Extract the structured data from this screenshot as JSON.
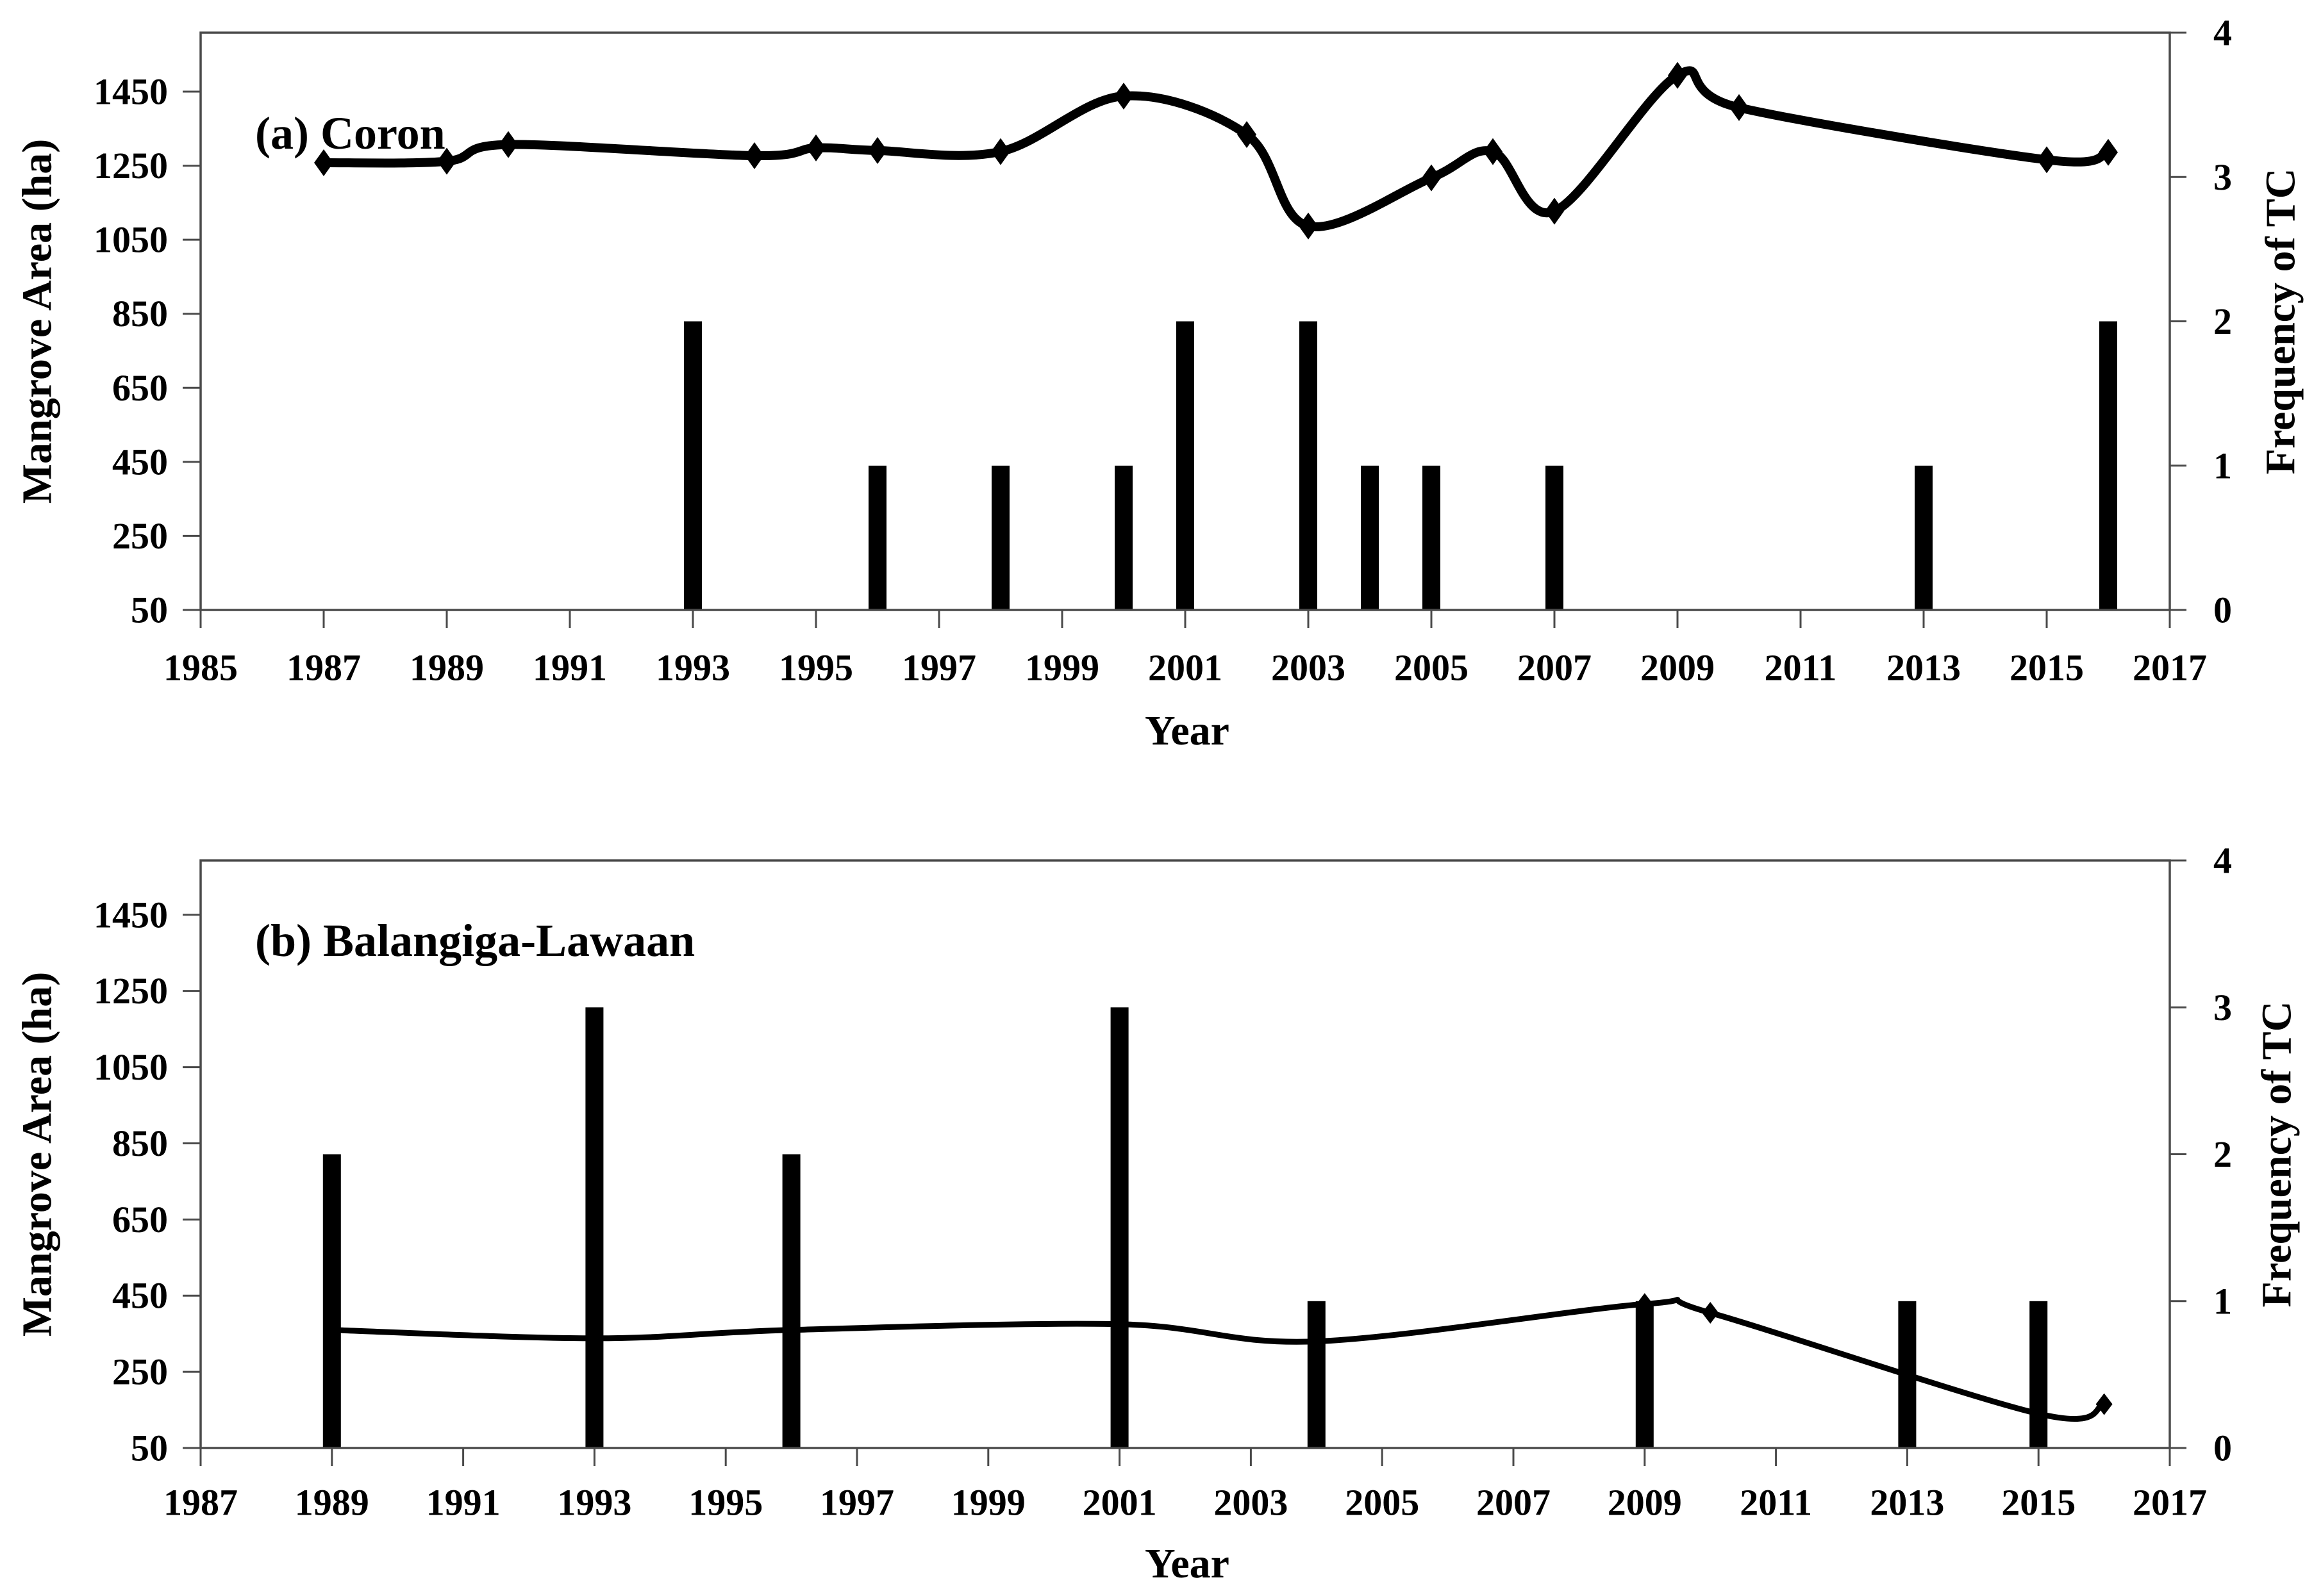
{
  "figure": {
    "background": "#ffffff",
    "series_color": "#000000",
    "axis_line_color": "#4a4a4a",
    "tick_color": "#6e6e6e"
  },
  "chart_data": [
    {
      "type": "line+bar",
      "panel_label": "(a) Coron",
      "xlabel": "Year",
      "ylabel_left": "Mangrove Area (ha)",
      "ylabel_right": "Frequency of TC",
      "xlim": [
        1985,
        2017
      ],
      "x_ticks": [
        1985,
        1987,
        1989,
        1991,
        1993,
        1995,
        1997,
        1999,
        2001,
        2003,
        2005,
        2007,
        2009,
        2011,
        2013,
        2015,
        2017
      ],
      "y_left_min": 50,
      "y_left_ticks": [
        50,
        250,
        450,
        650,
        850,
        1050,
        1250,
        1450
      ],
      "ylim_right": [
        0,
        4
      ],
      "y_right_ticks": [
        0,
        1,
        2,
        3,
        4
      ],
      "grid": false,
      "legend": null,
      "line_series": {
        "name": "Mangrove Area (ha)",
        "marker": "diamond",
        "x": [
          1987,
          1989,
          1990,
          1994,
          1995,
          1996,
          1998,
          2000,
          2002,
          2003,
          2005,
          2006,
          2007,
          2009,
          2010,
          2015,
          2016
        ],
        "y": [
          1258,
          1262,
          1307,
          1277,
          1298,
          1291,
          1288,
          1438,
          1334,
          1087,
          1217,
          1288,
          1127,
          1494,
          1407,
          1266,
          1286
        ],
        "marker_x": [
          1987,
          1989,
          1990,
          1994,
          1995,
          1996,
          1998,
          2000,
          2002,
          2003,
          2005,
          2006,
          2007,
          2009,
          2010,
          2015,
          2016
        ]
      },
      "bar_series": {
        "name": "Frequency of TC",
        "x": [
          1993,
          1996,
          1998,
          2000,
          2001,
          2003,
          2004,
          2005,
          2007,
          2013,
          2016
        ],
        "y": [
          2,
          1,
          1,
          1,
          2,
          2,
          1,
          1,
          1,
          1,
          2
        ]
      }
    },
    {
      "type": "line+bar",
      "panel_label": "(b) Balangiga-Lawaan",
      "xlabel": "Year",
      "ylabel_left": "Mangrove Area (ha)",
      "ylabel_right": "Frequency of TC",
      "xlim": [
        1987,
        2017
      ],
      "x_ticks": [
        1987,
        1989,
        1991,
        1993,
        1995,
        1997,
        1999,
        2001,
        2003,
        2005,
        2007,
        2009,
        2011,
        2013,
        2015,
        2017
      ],
      "y_left_min": 50,
      "y_left_ticks": [
        50,
        250,
        450,
        650,
        850,
        1050,
        1250,
        1450
      ],
      "ylim_right": [
        0,
        4
      ],
      "y_right_ticks": [
        0,
        1,
        2,
        3,
        4
      ],
      "grid": false,
      "legend": null,
      "line_series": {
        "name": "Mangrove Area (ha)",
        "marker": "diamond",
        "x": [
          1989,
          1993,
          1996,
          2001,
          2004,
          2009,
          2010,
          2015,
          2016
        ],
        "y": [
          360,
          338,
          360,
          375,
          330,
          428,
          405,
          140,
          165
        ],
        "marker_x": [
          2009,
          2010,
          2016
        ]
      },
      "bar_series": {
        "name": "Frequency of TC",
        "x": [
          1989,
          1993,
          1996,
          2001,
          2004,
          2009,
          2013,
          2015
        ],
        "y": [
          2,
          3,
          2,
          3,
          1,
          1,
          1,
          1
        ]
      }
    }
  ]
}
